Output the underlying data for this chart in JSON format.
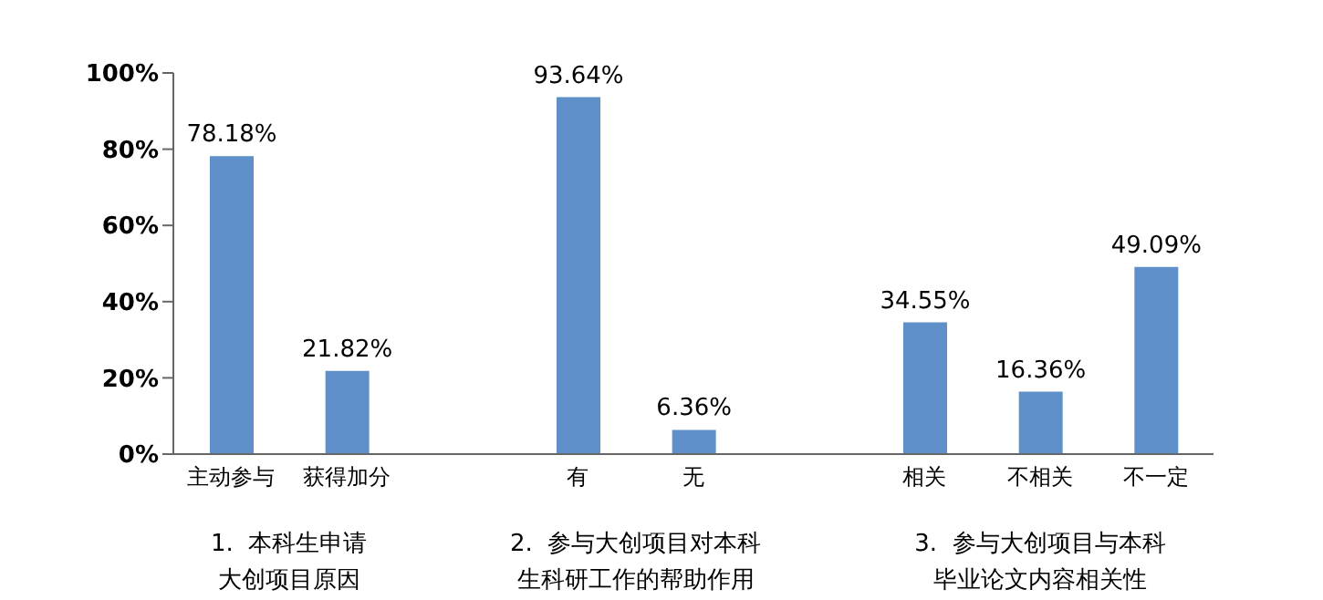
{
  "chart_data": {
    "type": "bar",
    "categories": [
      "主动参与",
      "获得加分",
      null,
      "有",
      "无",
      null,
      "相关",
      "不相关",
      "不一定"
    ],
    "values": [
      78.18,
      21.82,
      null,
      93.64,
      6.36,
      null,
      34.55,
      16.36,
      49.09
    ],
    "value_labels": [
      "78.18%",
      "21.82%",
      null,
      "93.64%",
      "6.36%",
      null,
      "34.55%",
      "16.36%",
      "49.09%"
    ],
    "color": "#5e8fc8",
    "ylim": [
      0,
      100
    ],
    "yticks": [
      {
        "value": 0,
        "label": "0%"
      },
      {
        "value": 20,
        "label": "20%"
      },
      {
        "value": 40,
        "label": "40%"
      },
      {
        "value": 60,
        "label": "60%"
      },
      {
        "value": 80,
        "label": "80%"
      },
      {
        "value": 100,
        "label": "100%"
      }
    ],
    "grid": false,
    "legend": false,
    "annotations": [
      "1.  本科生申请大创项目原因",
      "2.  参与大创项目对本科生科研工作的帮助作用",
      "3.  参与大创项目与本科毕业论文内容相关性"
    ]
  }
}
